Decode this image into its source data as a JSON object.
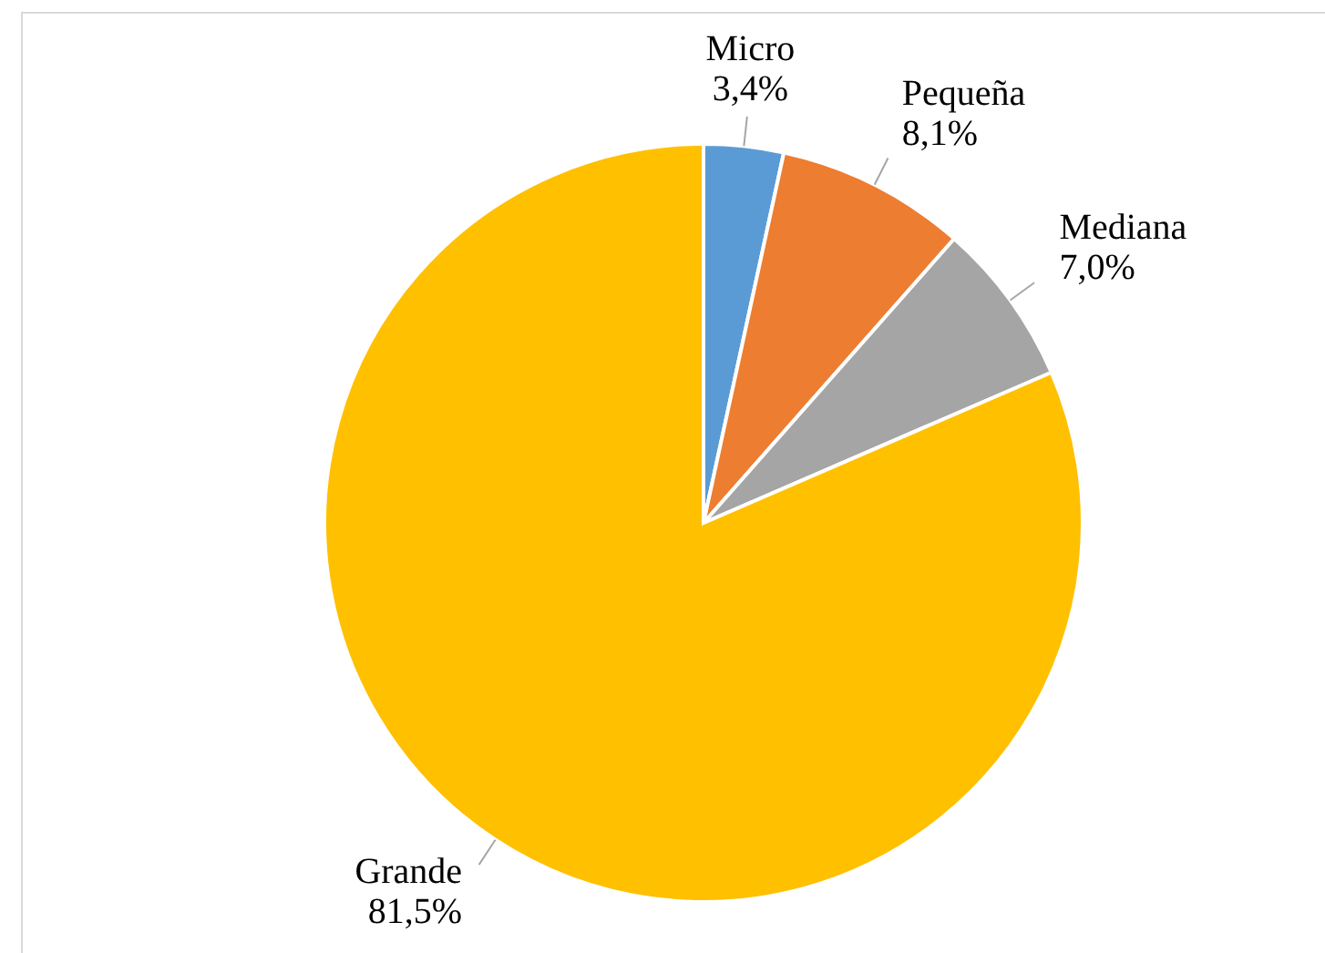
{
  "chart_data": {
    "type": "pie",
    "categories": [
      "Micro",
      "Pequeña",
      "Mediana",
      "Grande"
    ],
    "values": [
      3.4,
      8.1,
      7.0,
      81.5
    ],
    "colors": [
      "#5b9bd5",
      "#ed7d31",
      "#a5a5a5",
      "#ffc000"
    ],
    "value_labels": [
      "3,4%",
      "8,1%",
      "7,0%",
      "81,5%"
    ]
  }
}
